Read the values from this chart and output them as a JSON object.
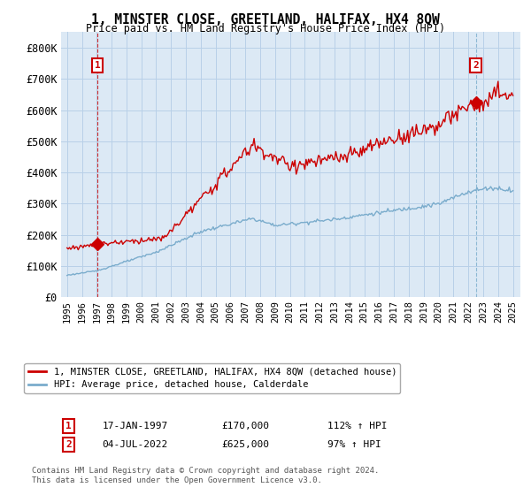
{
  "title": "1, MINSTER CLOSE, GREETLAND, HALIFAX, HX4 8QW",
  "subtitle": "Price paid vs. HM Land Registry's House Price Index (HPI)",
  "ylim": [
    0,
    850000
  ],
  "yticks": [
    0,
    100000,
    200000,
    300000,
    400000,
    500000,
    600000,
    700000,
    800000
  ],
  "ytick_labels": [
    "£0",
    "£100K",
    "£200K",
    "£300K",
    "£400K",
    "£500K",
    "£600K",
    "£700K",
    "£800K"
  ],
  "xlim_start": 1994.6,
  "xlim_end": 2025.5,
  "legend_entry1": "1, MINSTER CLOSE, GREETLAND, HALIFAX, HX4 8QW (detached house)",
  "legend_entry2": "HPI: Average price, detached house, Calderdale",
  "transaction1_label": "1",
  "transaction1_date": "17-JAN-1997",
  "transaction1_price": "£170,000",
  "transaction1_hpi": "112% ↑ HPI",
  "transaction2_label": "2",
  "transaction2_date": "04-JUL-2022",
  "transaction2_price": "£625,000",
  "transaction2_hpi": "97% ↑ HPI",
  "footnote": "Contains HM Land Registry data © Crown copyright and database right 2024.\nThis data is licensed under the Open Government Licence v3.0.",
  "red_color": "#cc0000",
  "blue_color": "#7aaccc",
  "plot_bg_color": "#dce9f5",
  "background_color": "#ffffff",
  "grid_color": "#b8d0e8",
  "transaction1_x": 1997.04,
  "transaction1_y": 170000,
  "transaction2_x": 2022.5,
  "transaction2_y": 625000
}
